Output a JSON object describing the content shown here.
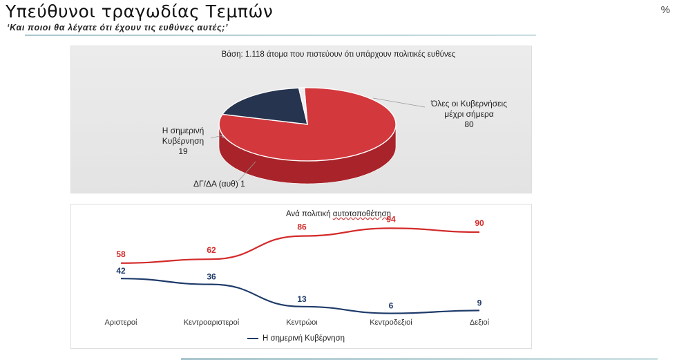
{
  "header": {
    "title": "Υπεύθυνοι τραγωδίας Τεμπών",
    "subtitle": "‘Και ποιοι θα λέγατε ότι έχουν τις ευθύνες αυτές;’",
    "unit": "%"
  },
  "pie": {
    "base_text": "Βάση: 1.118 άτομα που πιστεύουν ότι υπάρχουν πολιτικές ευθύνες",
    "slices": [
      {
        "name_lines": [
          "Όλες οι Κυβερνήσεις",
          "μέχρι σήμερα"
        ],
        "value": 80,
        "color": "#d3383d",
        "side_color": "#a8242a"
      },
      {
        "name_lines": [
          "Η σημερινή",
          "Κυβέρνηση"
        ],
        "value": 19,
        "color": "#26344f",
        "side_color": "#3f5f86"
      },
      {
        "name_lines": [
          "ΔΓ/ΔΑ (αυθ)"
        ],
        "value": 1,
        "color": "#eeeeee",
        "side_color": "#cfcfcf"
      }
    ]
  },
  "line": {
    "title_prefix": "Ανά πολιτική ",
    "title_underlined": "αυτοτοποθέτηση",
    "legend_label": "Η σημερινή Κυβέρνηση"
  },
  "chart_data": [
    {
      "type": "pie",
      "title": "Βάση: 1.118 άτομα που πιστεύουν ότι υπάρχουν πολιτικές ευθύνες",
      "labels": [
        "Όλες οι Κυβερνήσεις μέχρι σήμερα",
        "Η σημερινή Κυβέρνηση",
        "ΔΓ/ΔΑ (αυθ)"
      ],
      "values": [
        80,
        19,
        1
      ],
      "unit": "%",
      "colors": [
        "#d3383d",
        "#26344f",
        "#eeeeee"
      ]
    },
    {
      "type": "line",
      "title": "Ανά πολιτική αυτοτοποθέτηση",
      "categories": [
        "Αριστεροί",
        "Κεντροαριστεροί",
        "Κεντρώοι",
        "Κεντροδεξιοί",
        "Δεξιοί"
      ],
      "series": [
        {
          "name": "",
          "values": [
            58,
            62,
            86,
            94,
            90
          ],
          "color": "#d42a2a"
        },
        {
          "name": "Η σημερινή Κυβέρνηση",
          "values": [
            42,
            36,
            13,
            6,
            9
          ],
          "color": "#1f3b6a"
        }
      ],
      "unit": "%",
      "ylim": [
        0,
        100
      ],
      "grid": false,
      "legend": "bottom"
    }
  ]
}
